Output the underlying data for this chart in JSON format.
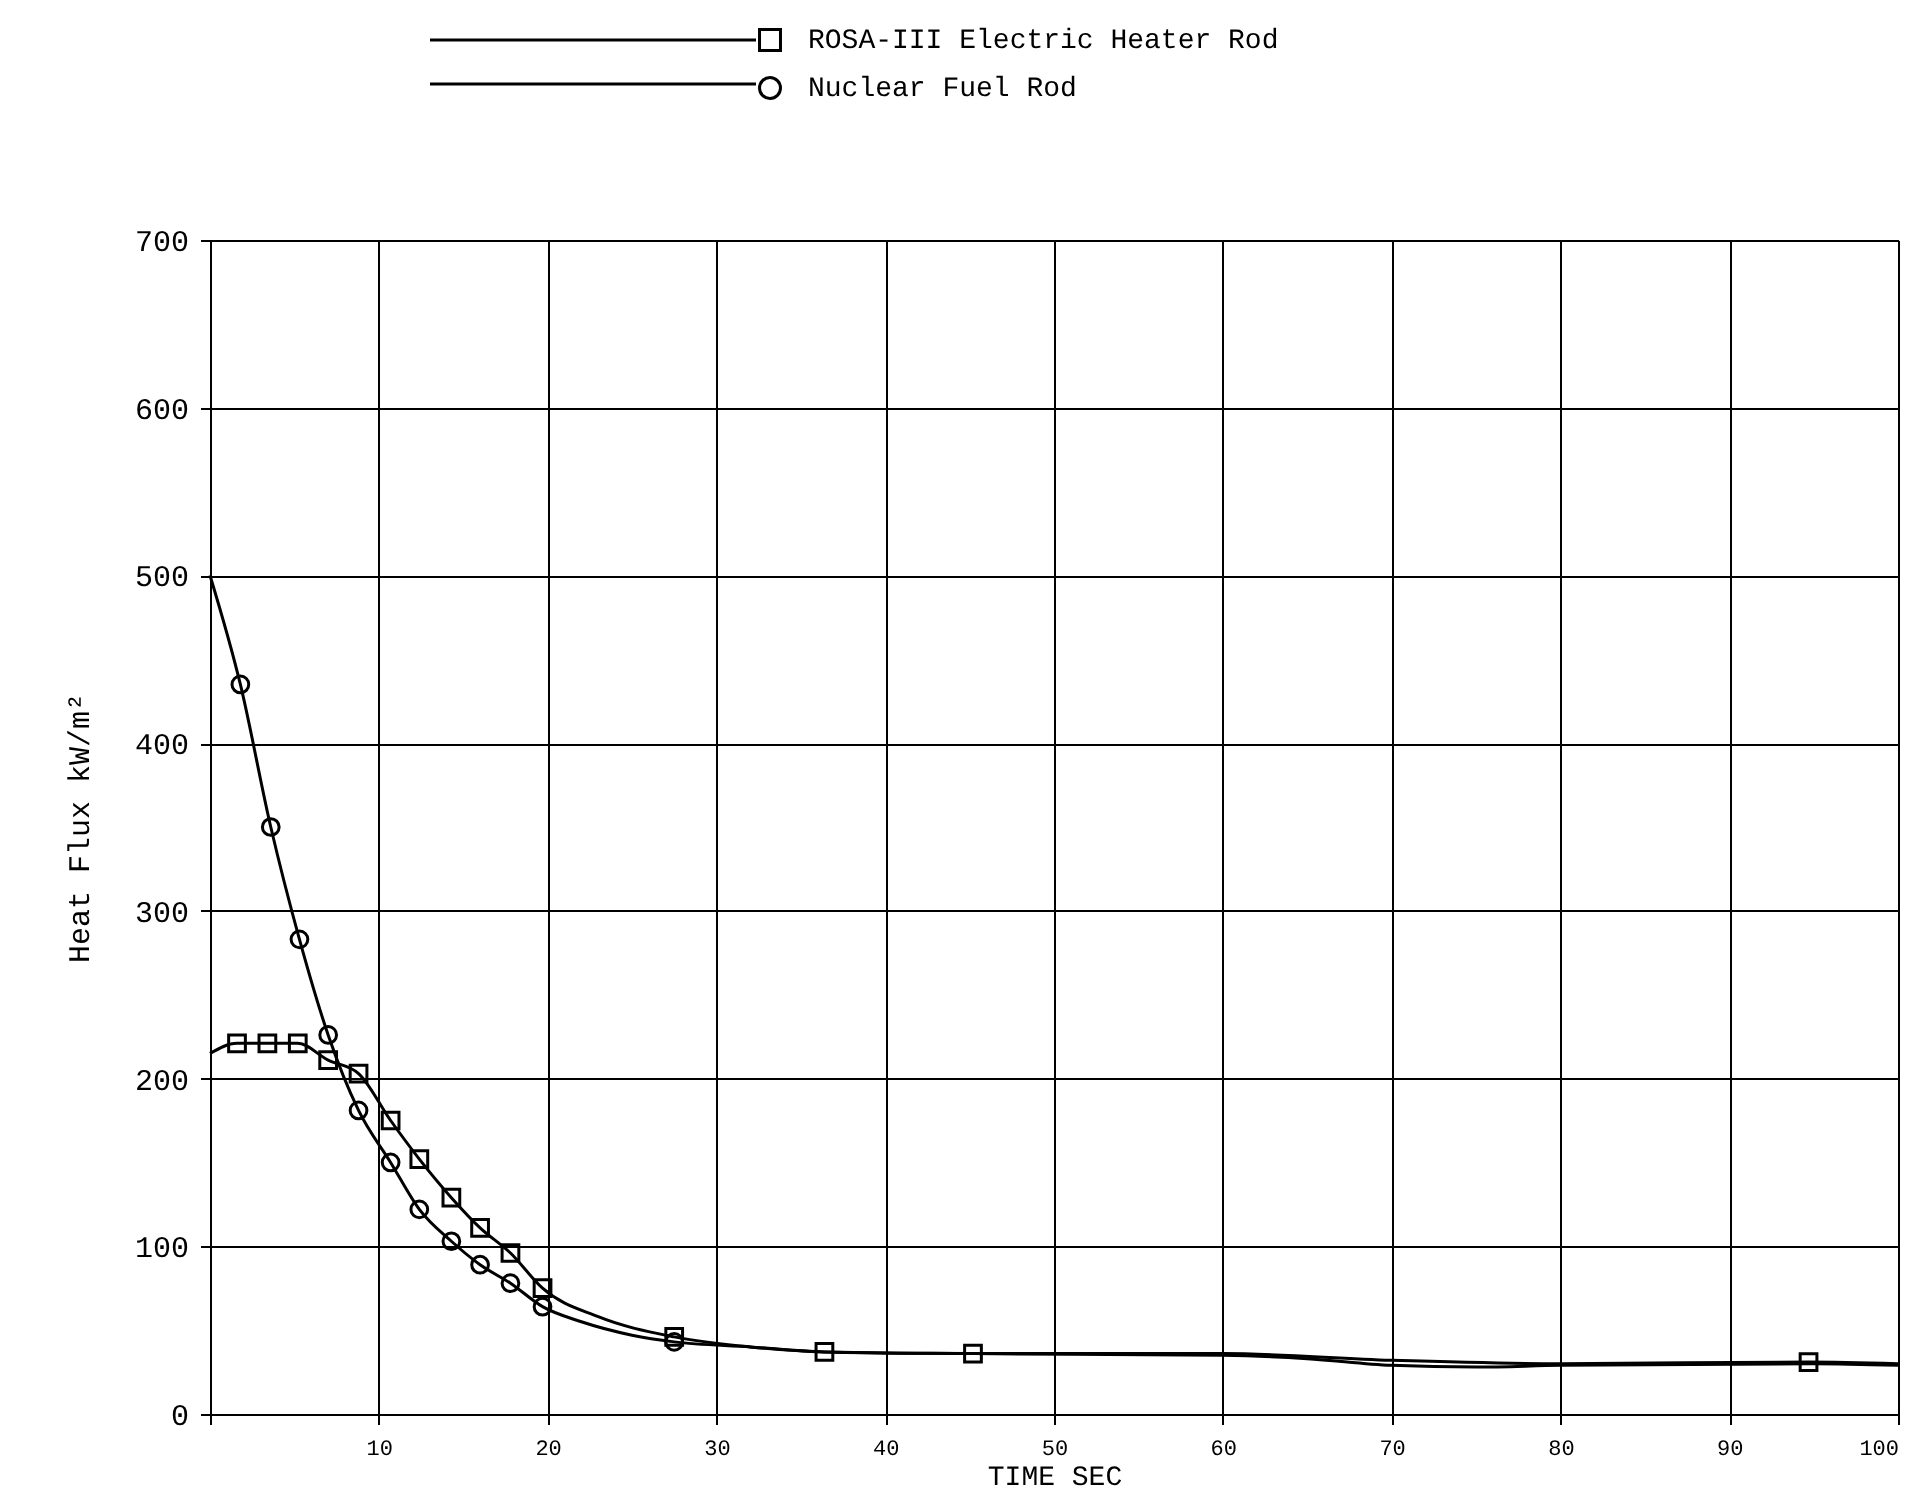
{
  "chart_data": {
    "type": "line",
    "xlabel": "TIME  SEC",
    "ylabel": "Heat Flux    kW/m²",
    "xlim": [
      0,
      100
    ],
    "ylim": [
      0,
      700
    ],
    "xticks": [
      {
        "value": 0,
        "label": null
      },
      10,
      20,
      30,
      40,
      50,
      60,
      70,
      80,
      90,
      100
    ],
    "yticks": [
      0,
      100,
      200,
      300,
      400,
      500,
      600,
      700
    ],
    "grid": true,
    "legend": "top",
    "line_style": "solid",
    "series": [
      {
        "color": "#000000",
        "marker": "none",
        "x": [
          0,
          1.6,
          3.4,
          5.2,
          7.0,
          8.8,
          10.7,
          12.4,
          14.3,
          16.0,
          17.8,
          19.7,
          23,
          27.5,
          32,
          36.4,
          45.2,
          60,
          70,
          80,
          94.7,
          100
        ],
        "values": [
          215,
          221,
          221,
          221,
          211,
          203,
          175,
          152,
          129,
          111,
          96,
          75,
          58,
          46,
          40,
          37,
          36,
          36,
          32,
          30,
          31,
          30
        ]
      },
      {
        "color": "#000000",
        "marker": "none",
        "x": [
          0,
          1.8,
          3.6,
          5.3,
          7.0,
          8.8,
          10.7,
          12.4,
          14.3,
          16.0,
          17.8,
          19.7,
          22,
          25,
          27.5,
          32,
          36.4,
          45.2,
          60,
          65,
          70,
          75,
          80,
          95,
          100
        ],
        "values": [
          500,
          435,
          350,
          283,
          226,
          181,
          150,
          122,
          103,
          89,
          78,
          64,
          55,
          47,
          43,
          40,
          37,
          36,
          35,
          33,
          29,
          28,
          29,
          30,
          29
        ]
      },
      {
        "type": "scatter",
        "name": "ROSA-III Electric Heater Rod",
        "color": "#000000",
        "marker": "square",
        "x": [
          1.6,
          3.4,
          5.2,
          7.0,
          8.8,
          10.7,
          12.4,
          14.3,
          16.0,
          17.8,
          19.7,
          27.5,
          36.4,
          45.2,
          94.7
        ],
        "values": [
          221,
          221,
          221,
          211,
          203,
          175,
          152,
          129,
          111,
          96,
          75,
          46,
          37,
          36,
          31
        ]
      },
      {
        "type": "scatter",
        "name": "Nuclear Fuel Rod",
        "color": "#000000",
        "marker": "circle",
        "x": [
          1.8,
          3.6,
          5.3,
          7.0,
          8.8,
          10.7,
          12.4,
          14.3,
          16.0,
          17.8,
          19.7,
          27.5
        ],
        "values": [
          435,
          350,
          283,
          226,
          181,
          150,
          122,
          103,
          89,
          78,
          64,
          43
        ]
      }
    ]
  }
}
